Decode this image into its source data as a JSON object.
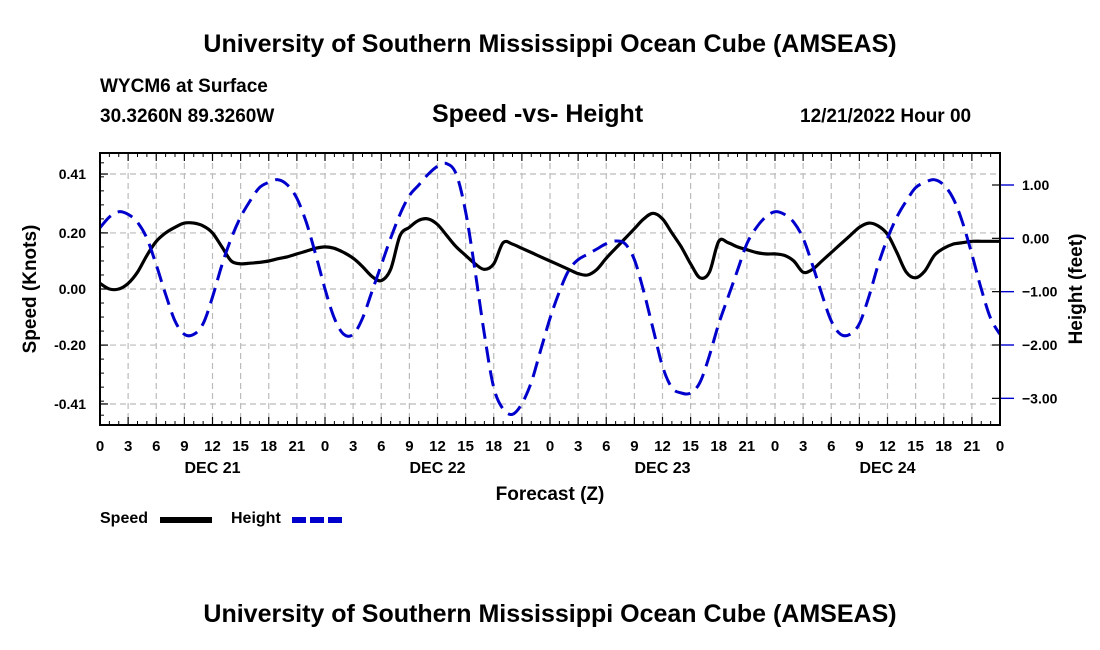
{
  "header": {
    "title": "University of Southern Mississippi Ocean Cube (AMSEAS)",
    "station": "WYCM6 at Surface",
    "coords": "30.3260N  89.3260W",
    "date_hour": "12/21/2022 Hour 00"
  },
  "footer": {
    "title": "University of Southern Mississippi Ocean Cube (AMSEAS)"
  },
  "legend": {
    "speed_label": "Speed",
    "height_label": "Height"
  },
  "colors": {
    "speed": "#000000",
    "height": "#0000cc",
    "grid": "#bbbbbb"
  },
  "chart_data": {
    "type": "line",
    "title": "Speed -vs- Height",
    "xlabel": "Forecast (Z)",
    "ylabel": "Speed (Knots)",
    "y2label": "Height (feet)",
    "xlim": [
      0,
      96
    ],
    "ylim": [
      -0.485,
      0.485
    ],
    "y2lim": [
      -3.5,
      1.6
    ],
    "grid": true,
    "x_ticks": [
      0,
      3,
      6,
      9,
      12,
      15,
      18,
      21,
      24,
      27,
      30,
      33,
      36,
      39,
      42,
      45,
      48,
      51,
      54,
      57,
      60,
      63,
      66,
      69,
      72,
      75,
      78,
      81,
      84,
      87,
      90,
      93,
      96
    ],
    "x_tick_labels": [
      "0",
      "3",
      "6",
      "9",
      "12",
      "15",
      "18",
      "21",
      "0",
      "3",
      "6",
      "9",
      "12",
      "15",
      "18",
      "21",
      "0",
      "3",
      "6",
      "9",
      "12",
      "15",
      "18",
      "21",
      "0",
      "3",
      "6",
      "9",
      "12",
      "15",
      "18",
      "21",
      "0"
    ],
    "day_labels": [
      {
        "x": 12,
        "label": "DEC 21"
      },
      {
        "x": 36,
        "label": "DEC 22"
      },
      {
        "x": 60,
        "label": "DEC 23"
      },
      {
        "x": 84,
        "label": "DEC 24"
      }
    ],
    "y_ticks": [
      0.41,
      0.2,
      0.0,
      -0.2,
      -0.41
    ],
    "y_tick_labels": [
      "0.41",
      "0.20",
      "0.00",
      "-0.20",
      "-0.41"
    ],
    "y2_ticks": [
      1.0,
      0.0,
      -1.0,
      -2.0,
      -3.0
    ],
    "y2_tick_labels": [
      "1.00",
      "0.00",
      "−1.00",
      "−2.00",
      "−3.00"
    ],
    "series": [
      {
        "name": "Speed",
        "axis": "left",
        "style": "solid",
        "x": [
          0,
          1,
          2,
          3,
          4,
          5,
          6,
          7,
          8,
          9,
          10,
          11,
          12,
          13,
          14,
          15,
          16,
          17,
          18,
          19,
          20,
          21,
          22,
          23,
          24,
          25,
          26,
          27,
          28,
          29,
          30,
          31,
          32,
          33,
          34,
          35,
          36,
          37,
          38,
          39,
          40,
          41,
          42,
          43,
          44,
          45,
          46,
          47,
          48,
          49,
          50,
          51,
          52,
          53,
          54,
          55,
          56,
          57,
          58,
          59,
          60,
          61,
          62,
          63,
          64,
          65,
          66,
          67,
          68,
          69,
          70,
          71,
          72,
          73,
          74,
          75,
          76,
          77,
          78,
          79,
          80,
          81,
          82,
          83,
          84,
          85,
          86,
          87,
          88,
          89,
          90,
          91,
          92,
          93,
          94,
          95,
          96
        ],
        "values": [
          0.02,
          0.0,
          0.0,
          0.02,
          0.06,
          0.12,
          0.17,
          0.2,
          0.22,
          0.235,
          0.235,
          0.225,
          0.2,
          0.15,
          0.1,
          0.09,
          0.092,
          0.095,
          0.1,
          0.108,
          0.115,
          0.125,
          0.135,
          0.145,
          0.15,
          0.145,
          0.13,
          0.11,
          0.08,
          0.045,
          0.03,
          0.07,
          0.19,
          0.22,
          0.245,
          0.25,
          0.23,
          0.19,
          0.15,
          0.12,
          0.09,
          0.07,
          0.09,
          0.165,
          0.16,
          0.145,
          0.13,
          0.115,
          0.1,
          0.085,
          0.07,
          0.055,
          0.05,
          0.07,
          0.11,
          0.145,
          0.18,
          0.215,
          0.25,
          0.27,
          0.25,
          0.2,
          0.15,
          0.09,
          0.04,
          0.06,
          0.17,
          0.165,
          0.15,
          0.14,
          0.13,
          0.125,
          0.125,
          0.12,
          0.1,
          0.06,
          0.07,
          0.1,
          0.13,
          0.16,
          0.19,
          0.22,
          0.235,
          0.225,
          0.195,
          0.13,
          0.06,
          0.04,
          0.065,
          0.12,
          0.145,
          0.16,
          0.165,
          0.17,
          0.17,
          0.17,
          0.17
        ]
      },
      {
        "name": "Height",
        "axis": "right",
        "style": "dashed",
        "x": [
          0,
          1,
          2,
          3,
          4,
          5,
          6,
          7,
          8,
          9,
          10,
          11,
          12,
          13,
          14,
          15,
          16,
          17,
          18,
          19,
          20,
          21,
          22,
          23,
          24,
          25,
          26,
          27,
          28,
          29,
          30,
          31,
          32,
          33,
          34,
          35,
          36,
          37,
          38,
          39,
          40,
          41,
          42,
          43,
          44,
          45,
          46,
          47,
          48,
          49,
          50,
          51,
          52,
          53,
          54,
          55,
          56,
          57,
          58,
          59,
          60,
          61,
          62,
          63,
          64,
          65,
          66,
          67,
          68,
          69,
          70,
          71,
          72,
          73,
          74,
          75,
          76,
          77,
          78,
          79,
          80,
          81,
          82,
          83,
          84,
          85,
          86,
          87,
          88,
          89,
          90,
          91,
          92,
          93,
          94,
          95,
          96
        ],
        "values": [
          0.2,
          0.4,
          0.5,
          0.45,
          0.3,
          0.0,
          -0.5,
          -1.05,
          -1.55,
          -1.8,
          -1.8,
          -1.6,
          -1.1,
          -0.5,
          0.0,
          0.4,
          0.7,
          0.95,
          1.05,
          1.1,
          1.0,
          0.75,
          0.3,
          -0.3,
          -0.95,
          -1.5,
          -1.8,
          -1.8,
          -1.5,
          -1.0,
          -0.5,
          0.0,
          0.45,
          0.8,
          1.0,
          1.2,
          1.35,
          1.4,
          1.2,
          0.5,
          -0.6,
          -1.8,
          -2.8,
          -3.2,
          -3.3,
          -3.1,
          -2.7,
          -2.1,
          -1.5,
          -1.0,
          -0.6,
          -0.4,
          -0.3,
          -0.2,
          -0.1,
          -0.05,
          -0.1,
          -0.4,
          -1.0,
          -1.7,
          -2.4,
          -2.8,
          -2.9,
          -2.9,
          -2.7,
          -2.2,
          -1.6,
          -1.1,
          -0.6,
          -0.1,
          0.2,
          0.4,
          0.5,
          0.45,
          0.3,
          0.0,
          -0.5,
          -1.05,
          -1.55,
          -1.8,
          -1.8,
          -1.6,
          -1.1,
          -0.5,
          0.0,
          0.4,
          0.7,
          0.95,
          1.05,
          1.1,
          1.0,
          0.75,
          0.3,
          -0.3,
          -0.95,
          -1.5,
          -1.8
        ]
      }
    ]
  }
}
